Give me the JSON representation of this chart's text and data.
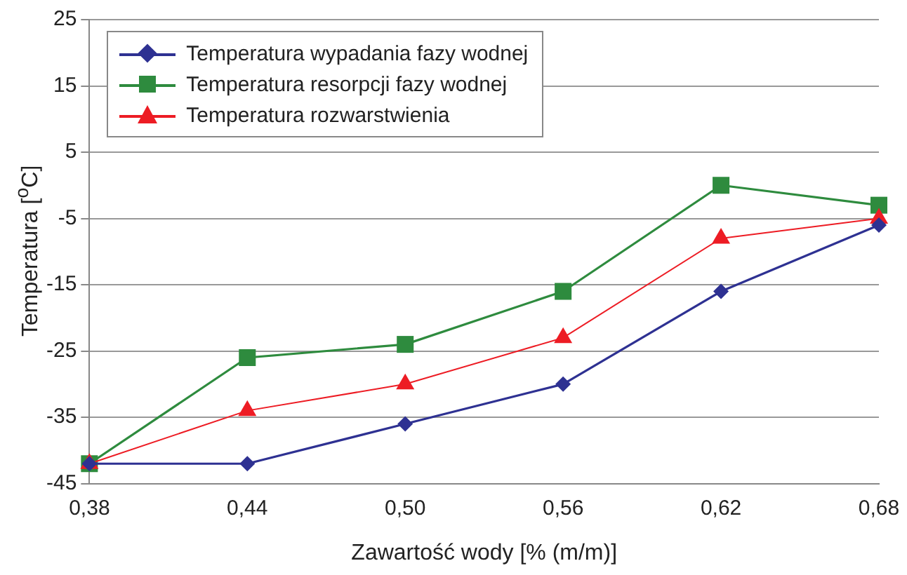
{
  "chart_data": {
    "type": "line",
    "xlabel": "Zawartość wody [% (m/m)]",
    "ylabel": "Temperatura [$^{o}$C]",
    "categories": [
      "0,38",
      "0,44",
      "0,50",
      "0,56",
      "0,62",
      "0,68"
    ],
    "series": [
      {
        "name": "Temperatura wypadania fazy wodnej",
        "color": "#2e3192",
        "marker": "diamond",
        "values": [
          -42,
          -42,
          -36,
          -30,
          -16,
          -6
        ]
      },
      {
        "name": "Temperatura resorpcji fazy wodnej",
        "color": "#2e8b3e",
        "marker": "square",
        "values": [
          -42,
          -26,
          -24,
          -16,
          0,
          -3
        ]
      },
      {
        "name": "Temperatura rozwarstwienia",
        "color": "#ed1c24",
        "marker": "triangle",
        "values": [
          -42,
          -34,
          -30,
          -23,
          -8,
          -5
        ]
      }
    ],
    "ylim": [
      -45,
      25
    ],
    "yticks": [
      -45,
      -35,
      -25,
      -15,
      -5,
      5,
      15,
      25
    ],
    "grid": "y",
    "legend": "top left",
    "line_style": "solid"
  }
}
